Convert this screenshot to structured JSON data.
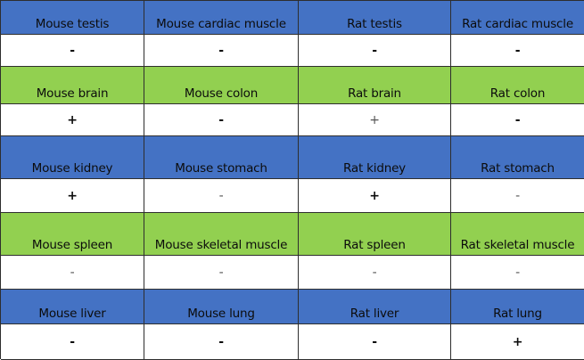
{
  "colors": {
    "blue": "#4472c4",
    "green": "#92d050",
    "white": "#ffffff"
  },
  "rows": [
    {
      "labels": [
        "Mouse testis",
        "Mouse cardiac muscle",
        "Rat testis",
        "Rat cardiac muscle"
      ],
      "values": [
        "-",
        "-",
        "-",
        "-"
      ]
    },
    {
      "labels": [
        "Mouse brain",
        "Mouse colon",
        "Rat brain",
        "Rat colon"
      ],
      "values": [
        "+",
        "-",
        "+",
        "-"
      ]
    },
    {
      "labels": [
        "Mouse kidney",
        "Mouse stomach",
        "Rat kidney",
        "Rat stomach"
      ],
      "values": [
        "+",
        "-",
        "+",
        "-"
      ]
    },
    {
      "labels": [
        "Mouse spleen",
        "Mouse skeletal muscle",
        "Rat spleen",
        "Rat skeletal muscle"
      ],
      "values": [
        "-",
        "-",
        "-",
        "-"
      ]
    },
    {
      "labels": [
        "Mouse liver",
        "Mouse lung",
        "Rat liver",
        "Rat lung"
      ],
      "values": [
        "-",
        "-",
        "-",
        "+"
      ]
    }
  ]
}
